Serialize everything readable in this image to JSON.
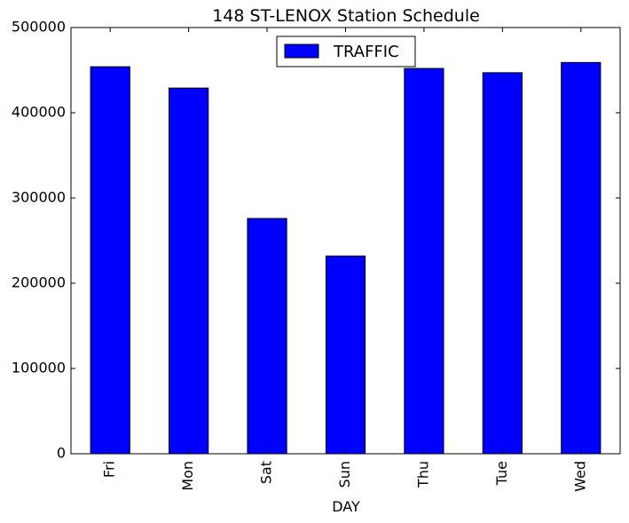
{
  "chart_data": {
    "type": "bar",
    "title": "148 ST-LENOX Station Schedule",
    "xlabel": "DAY",
    "ylabel": "",
    "categories": [
      "Fri",
      "Mon",
      "Sat",
      "Sun",
      "Thu",
      "Tue",
      "Wed"
    ],
    "series": [
      {
        "name": "TRAFFIC",
        "values": [
          454000,
          429000,
          276000,
          232000,
          452000,
          447000,
          459000
        ],
        "color": "#0000ff"
      }
    ],
    "ylim": [
      0,
      500000
    ],
    "yticks": [
      "0",
      "100000",
      "200000",
      "300000",
      "400000",
      "500000"
    ],
    "grid": false,
    "legend_position": "top-center"
  }
}
